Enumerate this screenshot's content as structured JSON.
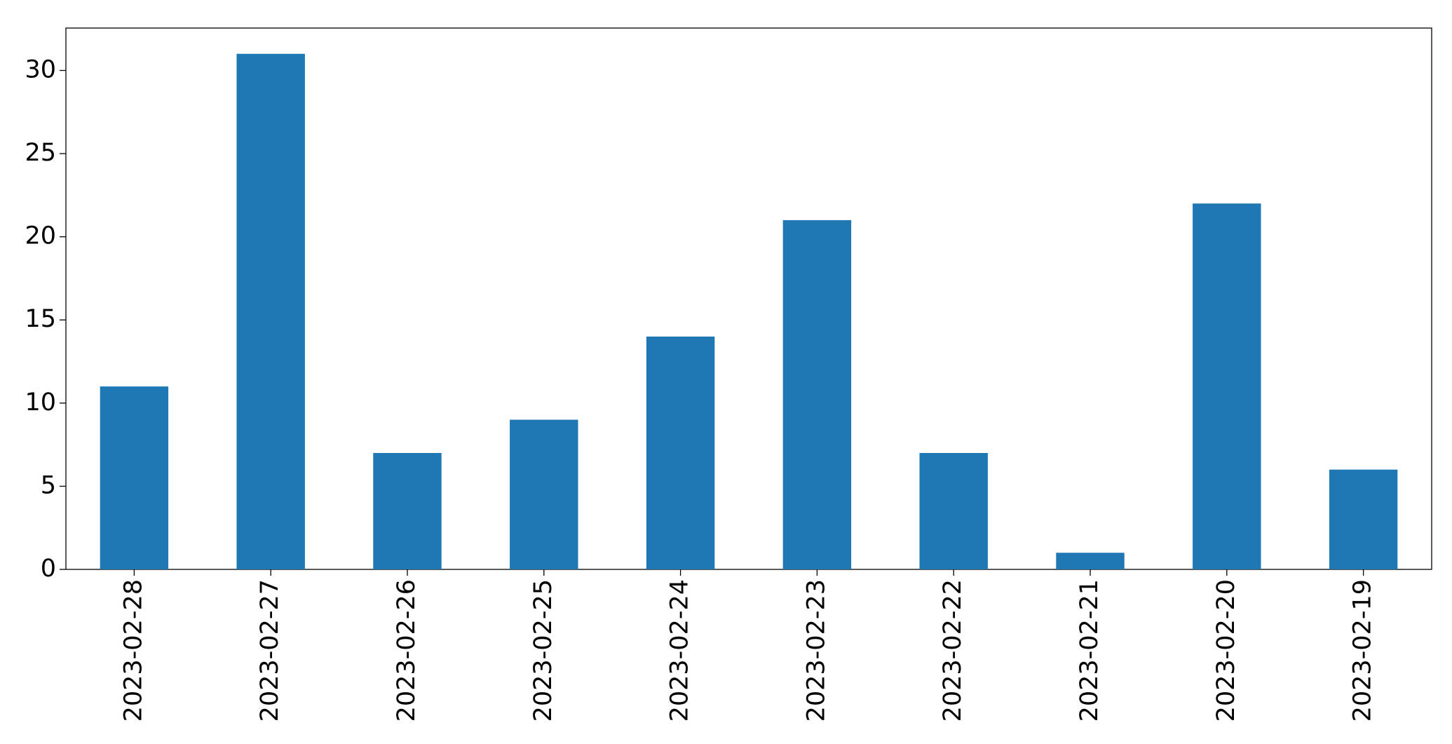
{
  "chart_data": {
    "type": "bar",
    "categories": [
      "2023-02-28",
      "2023-02-27",
      "2023-02-26",
      "2023-02-25",
      "2023-02-24",
      "2023-02-23",
      "2023-02-22",
      "2023-02-21",
      "2023-02-20",
      "2023-02-19"
    ],
    "values": [
      11,
      31,
      7,
      9,
      14,
      21,
      7,
      1,
      22,
      6
    ],
    "color": "#1f77b4",
    "ylim": [
      0,
      32.55
    ],
    "yticks": [
      0,
      5,
      10,
      15,
      20,
      25,
      30
    ],
    "grid": false
  }
}
